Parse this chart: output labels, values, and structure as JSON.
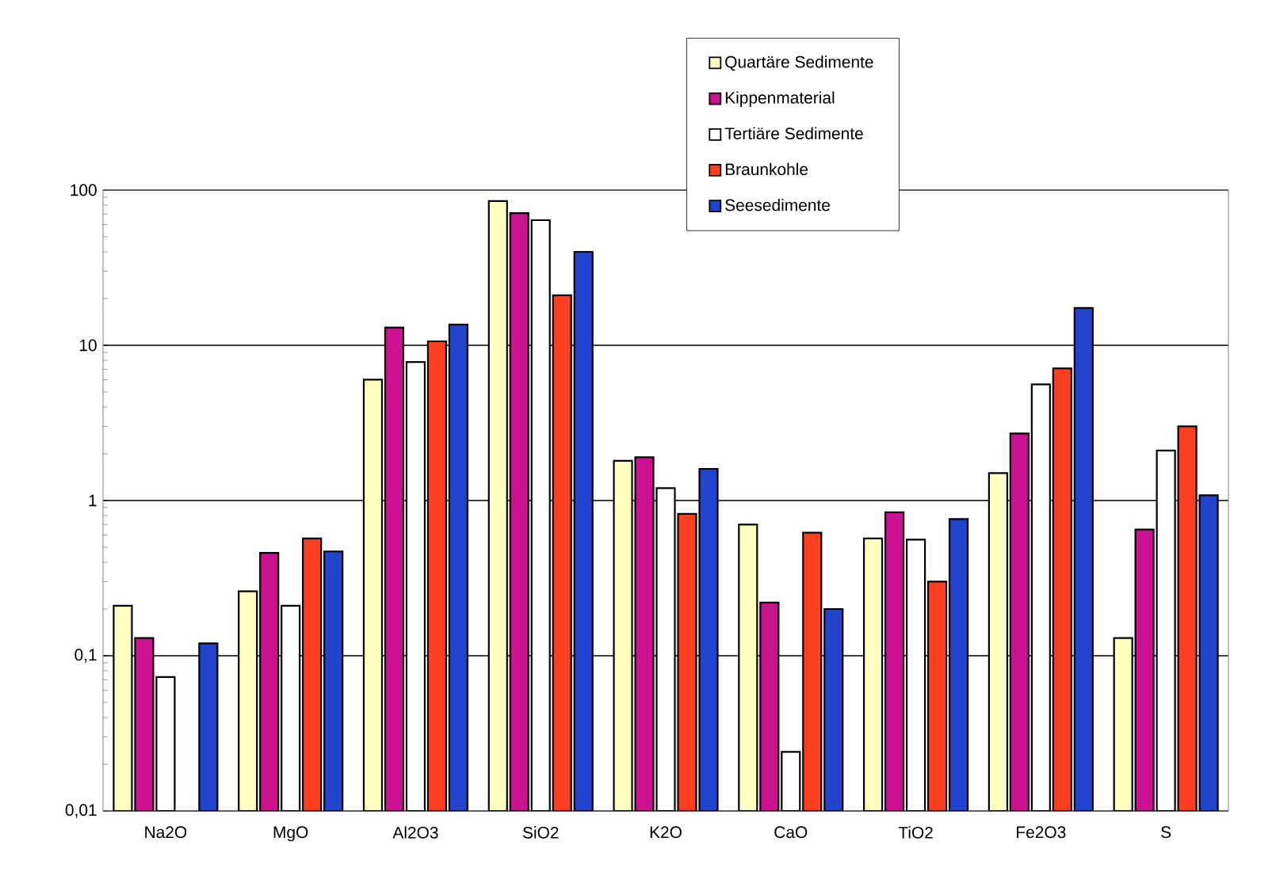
{
  "chart_data": {
    "type": "bar",
    "log": "y",
    "grid": "y",
    "legend": "top",
    "categories": [
      "Na2O",
      "MgO",
      "Al2O3",
      "SiO2",
      "K2O",
      "CaO",
      "TiO2",
      "Fe2O3",
      "S"
    ],
    "ylim": [
      0.01,
      100
    ],
    "yticks": [
      {
        "value": 0.01,
        "label": "0,01"
      },
      {
        "value": 0.1,
        "label": "0,1"
      },
      1,
      10,
      100
    ],
    "series": [
      {
        "name": "Quartäre Sedimente",
        "color": "#ffffc0",
        "values": [
          0.21,
          0.26,
          6.0,
          85,
          1.8,
          0.7,
          0.57,
          1.5,
          0.13
        ]
      },
      {
        "name": "Kippenmaterial",
        "color": "#cc1290",
        "values": [
          0.13,
          0.46,
          13,
          71,
          1.9,
          0.22,
          0.84,
          2.7,
          0.65
        ]
      },
      {
        "name": "Tertiäre Sedimente",
        "color": "#ffffff",
        "values": [
          0.073,
          0.21,
          7.8,
          64,
          1.2,
          0.024,
          0.56,
          5.6,
          2.1
        ]
      },
      {
        "name": "Braunkohle",
        "color": "#ff4020",
        "values": [
          null,
          0.57,
          10.6,
          21,
          0.82,
          0.62,
          0.3,
          7.1,
          3.0
        ]
      },
      {
        "name": "Seesedimente",
        "color": "#2244cc",
        "values": [
          0.12,
          0.47,
          13.6,
          40,
          1.6,
          0.2,
          0.76,
          17.4,
          1.08
        ]
      }
    ]
  }
}
